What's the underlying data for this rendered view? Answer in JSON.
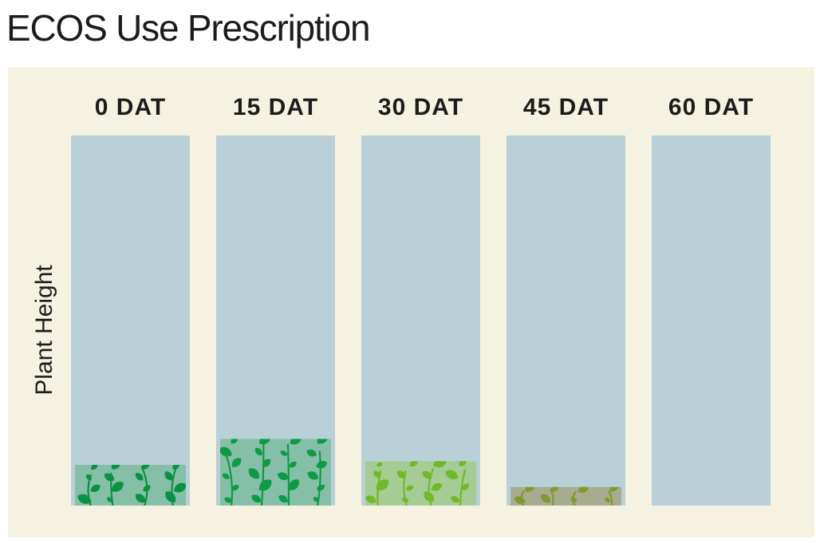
{
  "title": "ECOS Use Prescription",
  "colors": {
    "panel_background": "#f5f2e1",
    "column_background": "#b9d0d9",
    "text": "#1c1c1c"
  },
  "chart_data": {
    "type": "bar",
    "ylabel": "Plant Height",
    "xlabel": "",
    "categories": [
      "0 DAT",
      "15 DAT",
      "30 DAT",
      "45 DAT",
      "60 DAT"
    ],
    "values": [
      11,
      18,
      12,
      5,
      0
    ],
    "ylim": [
      0,
      100
    ],
    "unit_note_visible": false,
    "fill_colors": [
      "#0b9142",
      "#0f9a45",
      "#71b92a",
      "#7f9a2e",
      "#b9d0d9"
    ],
    "box_colors": [
      "#86bfa8",
      "#86bfa8",
      "#a5cc95",
      "#a7ac8e",
      "#b9d0d9"
    ],
    "grid": false
  }
}
